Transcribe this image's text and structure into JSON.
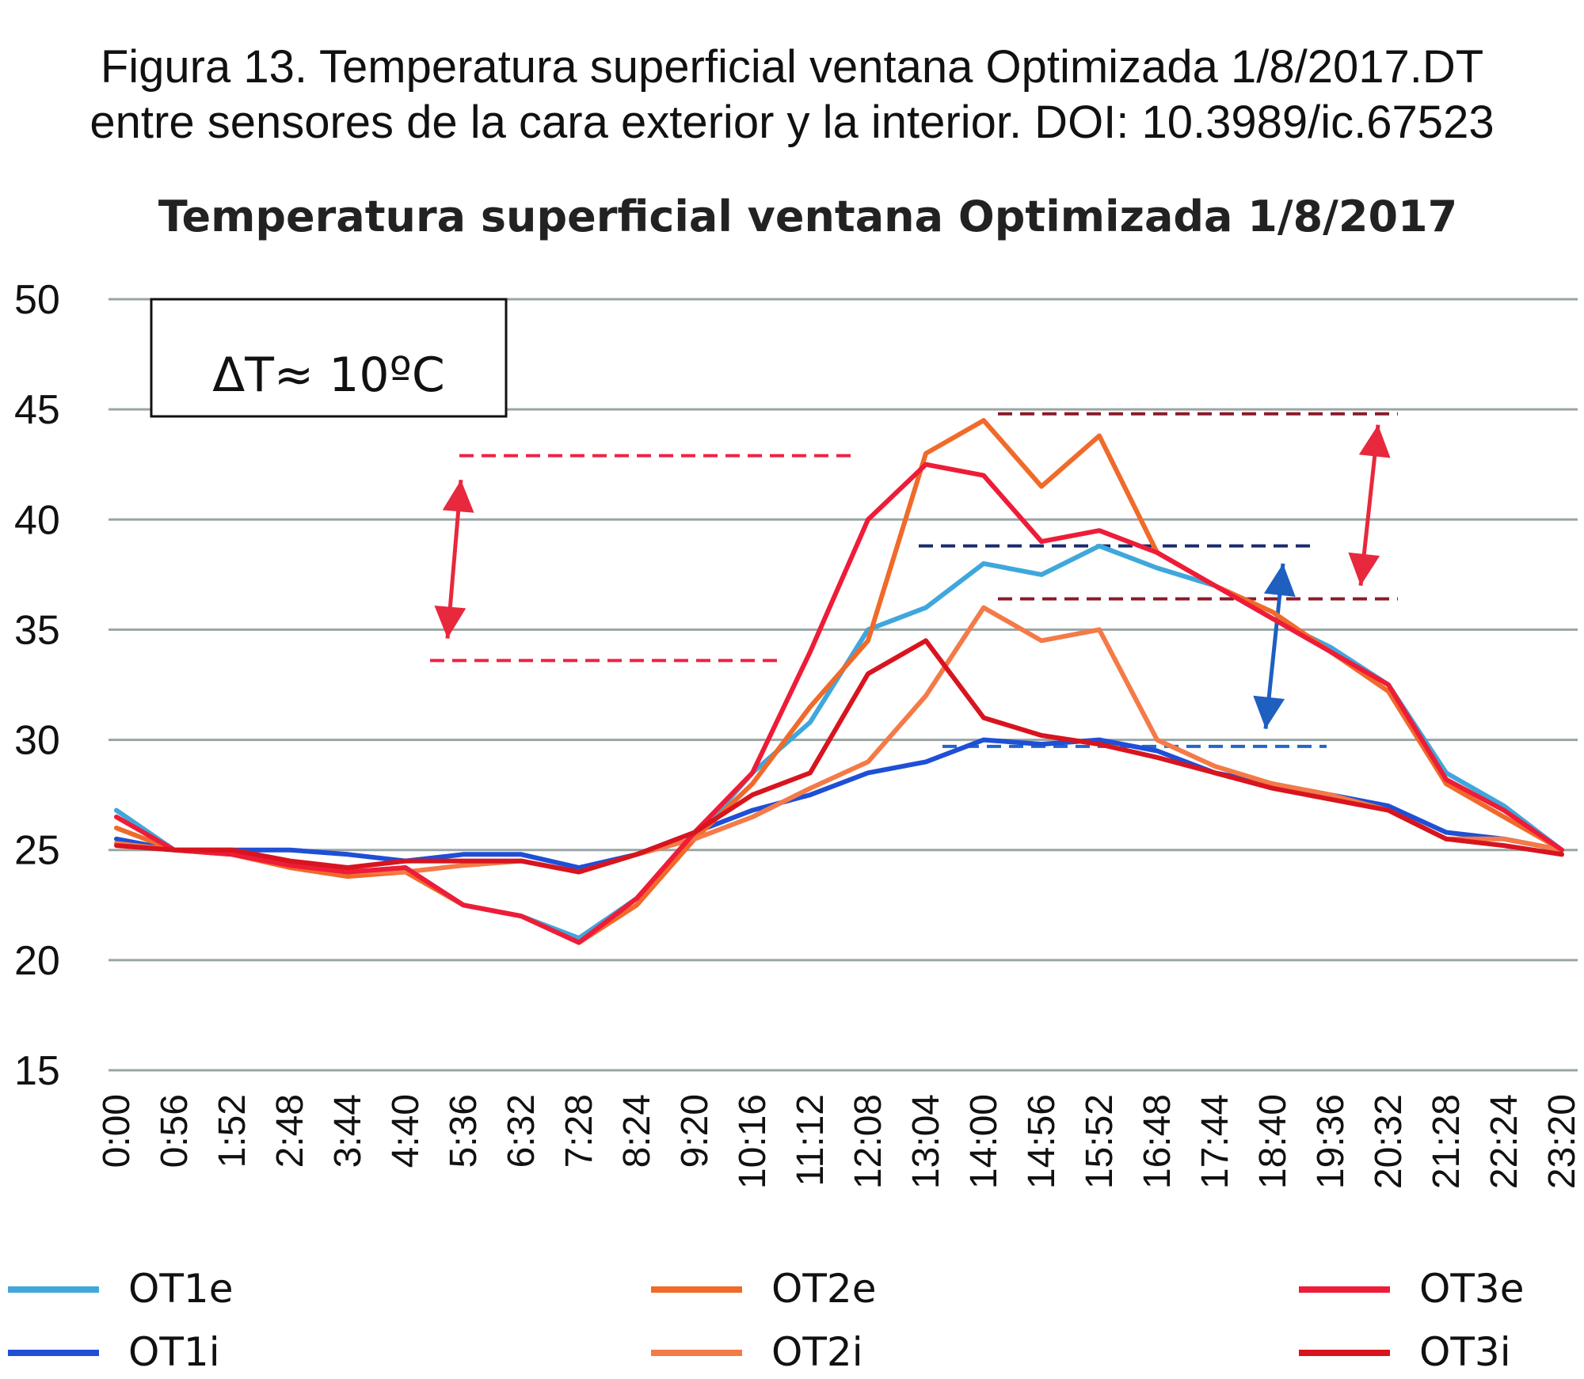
{
  "caption": {
    "line1": "Figura 13. Temperatura superficial ventana Optimizada 1/8/2017.DT",
    "line2": "entre sensores de la cara exterior y la interior. DOI: 10.3989/ic.67523"
  },
  "annotation": {
    "delta_label": "ΔT≈ 10ºC"
  },
  "colors": {
    "grid": "#9aa5a5",
    "red_dashed": "#ee2244",
    "darkred_dashed": "#8b1a2a",
    "navy_dashed": "#1a2a6c",
    "blue_dashed": "#2266cc",
    "red_arrow": "#e8283c",
    "blue_arrow": "#1e5fc0"
  },
  "chart_data": {
    "type": "line",
    "title": "Temperatura superficial ventana Optimizada 1/8/2017",
    "xlabel": "",
    "ylabel": "",
    "ylim": [
      15,
      50
    ],
    "yticks": [
      15,
      20,
      25,
      30,
      35,
      40,
      45,
      50
    ],
    "grid": true,
    "legend_position": "bottom",
    "categories": [
      "0:00",
      "0:56",
      "1:52",
      "2:48",
      "3:44",
      "4:40",
      "5:36",
      "6:32",
      "7:28",
      "8:24",
      "9:20",
      "10:16",
      "11:12",
      "12:08",
      "13:04",
      "14:00",
      "14:56",
      "15:52",
      "16:48",
      "17:44",
      "18:40",
      "19:36",
      "20:32",
      "21:28",
      "22:24",
      "23:20"
    ],
    "series": [
      {
        "name": "OT1e",
        "color": "#3fa7dc",
        "values": [
          26.8,
          25.0,
          25.0,
          24.3,
          24.0,
          24.2,
          22.5,
          22.0,
          21.0,
          22.8,
          25.5,
          28.5,
          30.8,
          35.0,
          36.0,
          38.0,
          37.5,
          38.8,
          37.8,
          37.0,
          35.5,
          34.2,
          32.5,
          28.5,
          27.0,
          25.0
        ]
      },
      {
        "name": "OT1i",
        "color": "#1f4fd6",
        "values": [
          25.5,
          25.0,
          25.0,
          25.0,
          24.8,
          24.5,
          24.8,
          24.8,
          24.2,
          24.8,
          25.8,
          26.8,
          27.5,
          28.5,
          29.0,
          30.0,
          29.8,
          30.0,
          29.5,
          28.5,
          28.0,
          27.5,
          27.0,
          25.8,
          25.5,
          25.0
        ]
      },
      {
        "name": "OT2e",
        "color": "#f06a2a",
        "values": [
          26.0,
          25.0,
          24.8,
          24.2,
          23.8,
          24.0,
          22.5,
          22.0,
          20.8,
          22.5,
          25.5,
          28.0,
          31.5,
          34.5,
          43.0,
          44.5,
          41.5,
          43.8,
          38.5,
          37.0,
          35.8,
          34.0,
          32.2,
          28.0,
          26.5,
          25.0
        ]
      },
      {
        "name": "OT2i",
        "color": "#f47a48",
        "values": [
          25.3,
          25.0,
          25.0,
          24.5,
          24.0,
          24.0,
          24.3,
          24.5,
          24.0,
          24.8,
          25.5,
          26.5,
          27.8,
          29.0,
          32.0,
          36.0,
          34.5,
          35.0,
          30.0,
          28.8,
          28.0,
          27.5,
          26.8,
          25.5,
          25.5,
          25.0
        ]
      },
      {
        "name": "OT3e",
        "color": "#ee1c38",
        "values": [
          26.5,
          25.0,
          24.8,
          24.3,
          24.0,
          24.2,
          22.5,
          22.0,
          20.8,
          22.8,
          25.8,
          28.5,
          34.0,
          40.0,
          42.5,
          42.0,
          39.0,
          39.5,
          38.5,
          37.0,
          35.5,
          34.0,
          32.5,
          28.2,
          26.8,
          25.0
        ]
      },
      {
        "name": "OT3i",
        "color": "#d8141e",
        "values": [
          25.2,
          25.0,
          25.0,
          24.5,
          24.2,
          24.5,
          24.5,
          24.5,
          24.0,
          24.8,
          25.8,
          27.5,
          28.5,
          33.0,
          34.5,
          31.0,
          30.2,
          29.8,
          29.2,
          28.5,
          27.8,
          27.3,
          26.8,
          25.5,
          25.2,
          24.8
        ]
      }
    ]
  }
}
